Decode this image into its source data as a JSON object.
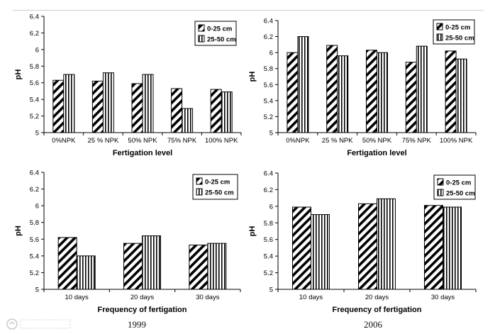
{
  "figure": {
    "year_labels": [
      "1999",
      "2006"
    ]
  },
  "patterns": {
    "series_a": "diag-left",
    "series_b": "vertical"
  },
  "chart_data": [
    {
      "type": "bar",
      "panel": "top-left",
      "categories": [
        "0%NPK",
        "25 % NPK",
        "50% NPK",
        "75% NPK",
        "100% NPK"
      ],
      "series": [
        {
          "name": "0-25 cm",
          "values": [
            5.63,
            5.62,
            5.59,
            5.53,
            5.52
          ]
        },
        {
          "name": "25-50 cm",
          "values": [
            5.7,
            5.72,
            5.7,
            5.29,
            5.49
          ]
        }
      ],
      "xlabel": "Fertigation level",
      "ylabel": "pH",
      "ylim": [
        5,
        6.4
      ],
      "yticks": [
        "5",
        "5.2",
        "5.4",
        "5.6",
        "5.8",
        "6",
        "6.2",
        "6.4"
      ],
      "grid": false,
      "legend_position": "top-right"
    },
    {
      "type": "bar",
      "panel": "top-right",
      "categories": [
        "0%NPK",
        "25 % NPK",
        "50% NPK",
        "75% NPK",
        "100% NPK"
      ],
      "series": [
        {
          "name": "0-25 cm",
          "values": [
            6.0,
            6.09,
            6.03,
            5.88,
            6.02
          ]
        },
        {
          "name": "25-50 cm",
          "values": [
            6.2,
            5.96,
            6.0,
            6.08,
            5.92
          ]
        }
      ],
      "xlabel": "Fertigation level",
      "ylabel": "pH",
      "ylim": [
        5,
        6.4
      ],
      "yticks": [
        "5",
        "5.2",
        "5.4",
        "5.6",
        "5.8",
        "6",
        "6.2",
        "6.4"
      ],
      "grid": false,
      "legend_position": "top-right"
    },
    {
      "type": "bar",
      "panel": "bottom-left",
      "categories": [
        "10 days",
        "20 days",
        "30 days"
      ],
      "series": [
        {
          "name": "0-25 cm",
          "values": [
            5.62,
            5.55,
            5.53
          ]
        },
        {
          "name": "25-50 cm",
          "values": [
            5.4,
            5.64,
            5.55
          ]
        }
      ],
      "xlabel": "Frequency of fertigation",
      "ylabel": "pH",
      "ylim": [
        5,
        6.4
      ],
      "yticks": [
        "5",
        "5.2",
        "5.4",
        "5.6",
        "5.8",
        "6",
        "6.2",
        "6.4"
      ],
      "grid": false,
      "legend_position": "top-right"
    },
    {
      "type": "bar",
      "panel": "bottom-right",
      "categories": [
        "10 days",
        "20 days",
        "30 days"
      ],
      "series": [
        {
          "name": "0-25 cm",
          "values": [
            5.99,
            6.03,
            6.01
          ]
        },
        {
          "name": "25-50 cm",
          "values": [
            5.9,
            6.09,
            5.99
          ]
        }
      ],
      "xlabel": "Frequency of fertigation",
      "ylabel": "pH",
      "ylim": [
        5,
        6.4
      ],
      "yticks": [
        "5",
        "5.2",
        "5.4",
        "5.6",
        "5.8",
        "6",
        "6.2",
        "6.4"
      ],
      "grid": false,
      "legend_position": "top-right"
    }
  ]
}
